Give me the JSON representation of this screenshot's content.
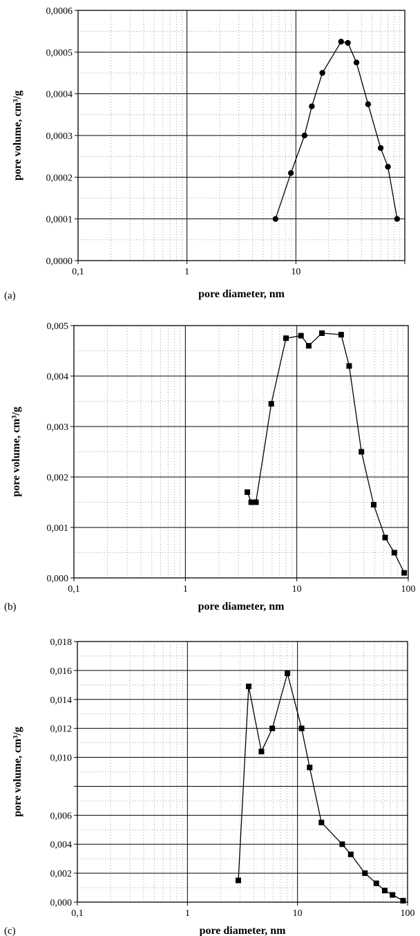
{
  "chart_data": [
    {
      "panel": "(a)",
      "type": "line",
      "xscale": "log",
      "xlim": [
        0.1,
        100
      ],
      "ylim": [
        0,
        0.0006
      ],
      "xlabel": "pore diameter, nm",
      "ylabel": "pore volume, cm³/g",
      "xticks": [
        "0,1",
        "1",
        "10",
        ""
      ],
      "yticks": [
        "0,0000",
        "0,0001",
        "0,0002",
        "0,0003",
        "0,0004",
        "0,0005",
        "0,0006"
      ],
      "marker": "circle",
      "grid": true,
      "series": [
        {
          "x": [
            6.5,
            9,
            12,
            14,
            17.5,
            26,
            30,
            36,
            46,
            60,
            70,
            85
          ],
          "y": [
            0.0001,
            0.00021,
            0.0003,
            0.00037,
            0.00045,
            0.000525,
            0.000522,
            0.000475,
            0.000375,
            0.00027,
            0.000225,
            0.0001
          ]
        }
      ]
    },
    {
      "panel": "(b)",
      "type": "line",
      "xscale": "log",
      "xlim": [
        0.1,
        100
      ],
      "ylim": [
        0,
        0.005
      ],
      "xlabel": "pore diameter, nm",
      "ylabel": "pore volume, cm³/g",
      "xticks": [
        "0,1",
        "1",
        "10",
        "100"
      ],
      "yticks": [
        "0,000",
        "0,001",
        "0,002",
        "0,003",
        "0,004",
        "0,005"
      ],
      "marker": "square",
      "grid": true,
      "series": [
        {
          "x": [
            3.6,
            3.9,
            4.3,
            5.9,
            8,
            10.9,
            12.8,
            16.8,
            25,
            29.5,
            38,
            49,
            62,
            75,
            92
          ],
          "y": [
            0.0017,
            0.0015,
            0.0015,
            0.00345,
            0.00475,
            0.0048,
            0.0046,
            0.00485,
            0.00482,
            0.0042,
            0.0025,
            0.00145,
            0.0008,
            0.0005,
            0.0001
          ]
        }
      ]
    },
    {
      "panel": "(c)",
      "type": "line",
      "xscale": "log",
      "xlim": [
        0.1,
        100
      ],
      "ylim": [
        0,
        0.018
      ],
      "xlabel": "pore diameter, nm",
      "ylabel": "pore volume, cm³/g",
      "xticks": [
        "0,1",
        "1",
        "10",
        "100"
      ],
      "yticks": [
        "0,000",
        "0,002",
        "0,004",
        "0,006",
        "",
        "0,010",
        "0,012",
        "0,014",
        "0,016",
        "0,018"
      ],
      "marker": "square",
      "grid": true,
      "series": [
        {
          "x": [
            2.9,
            3.6,
            4.7,
            5.9,
            8.1,
            10.9,
            12.9,
            16.5,
            25.5,
            30.5,
            41,
            52,
            62,
            73,
            91
          ],
          "y": [
            0.0015,
            0.0149,
            0.0104,
            0.012,
            0.0158,
            0.012,
            0.0093,
            0.0055,
            0.004,
            0.0033,
            0.002,
            0.0013,
            0.0008,
            0.0005,
            0.0001
          ]
        }
      ]
    }
  ]
}
